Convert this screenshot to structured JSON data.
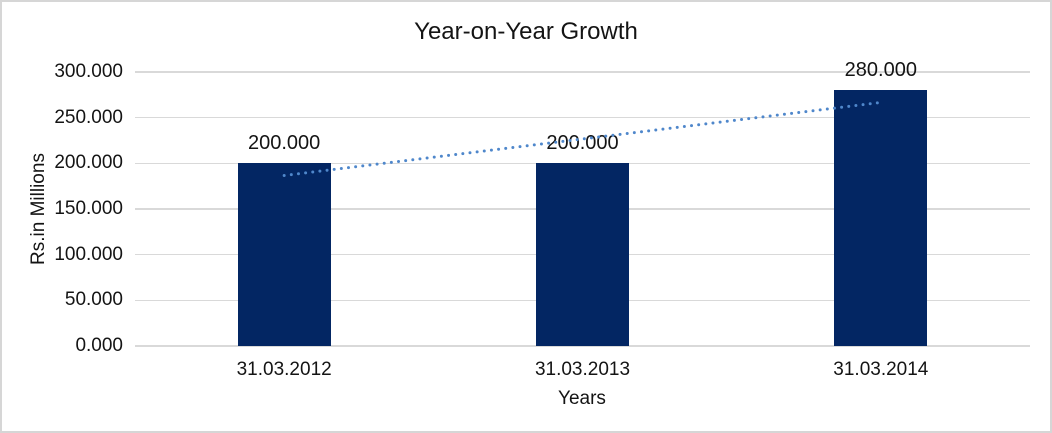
{
  "chart_data": {
    "type": "bar",
    "title": "Year-on-Year Growth",
    "xlabel": "Years",
    "ylabel": "Rs.in Millions",
    "categories": [
      "31.03.2012",
      "31.03.2013",
      "31.03.2014"
    ],
    "values": [
      200,
      200,
      280
    ],
    "data_labels": [
      "200.000",
      "200.000",
      "280.000"
    ],
    "y_ticks": [
      {
        "value": 0,
        "label": "0.000"
      },
      {
        "value": 50,
        "label": "50.000"
      },
      {
        "value": 100,
        "label": "100.000"
      },
      {
        "value": 150,
        "label": "150.000"
      },
      {
        "value": 200,
        "label": "200.000"
      },
      {
        "value": 250,
        "label": "250.000"
      },
      {
        "value": 300,
        "label": "300.000"
      }
    ],
    "ylim": [
      0,
      300
    ],
    "grid": true,
    "legend_position": "none",
    "trendline": {
      "type": "linear",
      "style": "dotted"
    },
    "colors": {
      "bar": "#032663",
      "trendline": "#4f87cb",
      "gridline": "#d9d9d9",
      "text": "#141414",
      "background": "#ffffff",
      "frame_border": "#d6d6d6"
    }
  }
}
